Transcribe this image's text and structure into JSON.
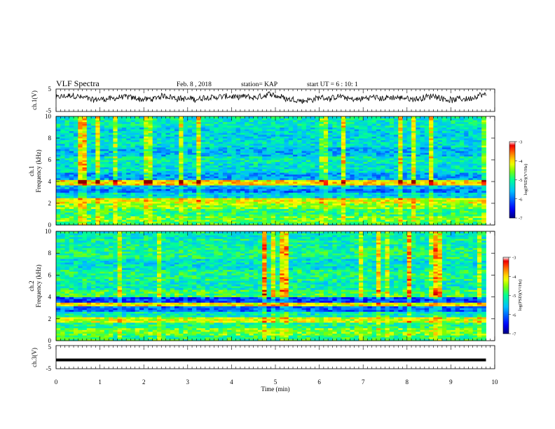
{
  "header": {
    "title": "VLF Spectra",
    "date": "Feb. 8 , 2018",
    "station": "station= KAP",
    "start": "start UT =  6 : 10: 1"
  },
  "chart_data": [
    {
      "type": "line",
      "name": "ch1-waveform",
      "ylabel": "ch.1(V)",
      "ylim": [
        -5,
        5
      ],
      "xlim": [
        0,
        10
      ],
      "yticks": [
        "5",
        "-5"
      ],
      "trace_x_range": [
        0,
        9.8
      ],
      "trace_baseline": 1.0,
      "trace_amplitude": 1.6,
      "trace_color": "#000000"
    },
    {
      "type": "heatmap",
      "name": "ch1-spectrogram",
      "ylabel": "Frequency (kHz)",
      "channel": "ch.1",
      "ylim": [
        0,
        10
      ],
      "xlim": [
        0,
        10
      ],
      "yticks": [
        "0",
        "2",
        "4",
        "6",
        "8",
        "10"
      ],
      "data_x_range": [
        0,
        9.8
      ],
      "colorbar": {
        "label": "log(PSD)(V²/Hz)",
        "min": -7,
        "max": -3,
        "ticks": [
          "-3",
          "-4",
          "-5",
          "-6",
          "-7"
        ],
        "scale": [
          "#000080",
          "#0000ff",
          "#00bfff",
          "#00ffa0",
          "#80ff00",
          "#ffff00",
          "#ff8000",
          "#ff0000",
          "#800000",
          "#ffffff"
        ]
      },
      "bands": [
        {
          "f": 0.2,
          "log_psd": -4.8
        },
        {
          "f": 0.6,
          "log_psd": -4.6
        },
        {
          "f": 1.2,
          "log_psd": -4.9
        },
        {
          "f": 1.9,
          "log_psd": -4.5
        },
        {
          "f": 2.2,
          "log_psd": -4.2
        },
        {
          "f": 2.8,
          "log_psd": -5.4
        },
        {
          "f": 3.1,
          "log_psd": -5.9
        },
        {
          "f": 3.5,
          "log_psd": -5.6
        },
        {
          "f": 3.8,
          "log_psd": -4.0
        },
        {
          "f": 4.5,
          "log_psd": -5.7
        },
        {
          "f": 5.2,
          "log_psd": -5.3
        },
        {
          "f": 6.0,
          "log_psd": -5.2
        },
        {
          "f": 6.8,
          "log_psd": -5.6
        },
        {
          "f": 7.5,
          "log_psd": -5.3
        },
        {
          "f": 8.5,
          "log_psd": -5.4
        },
        {
          "f": 9.5,
          "log_psd": -5.2
        }
      ]
    },
    {
      "type": "heatmap",
      "name": "ch2-spectrogram",
      "ylabel": "Frequency (kHz)",
      "channel": "ch.2",
      "ylim": [
        0,
        10
      ],
      "xlim": [
        0,
        10
      ],
      "yticks": [
        "0",
        "2",
        "4",
        "6",
        "8",
        "10"
      ],
      "data_x_range": [
        0,
        9.8
      ],
      "colorbar": {
        "label": "log(PSD)(V²/Hz)",
        "min": -7,
        "max": -3,
        "ticks": [
          "-3",
          "-4",
          "-5",
          "-6",
          "-7"
        ],
        "scale": [
          "#000080",
          "#0000ff",
          "#00bfff",
          "#00ffa0",
          "#80ff00",
          "#ffff00",
          "#ff8000",
          "#ff0000",
          "#800000",
          "#ffffff"
        ]
      },
      "bands": [
        {
          "f": 0.2,
          "log_psd": -4.9
        },
        {
          "f": 0.8,
          "log_psd": -4.6
        },
        {
          "f": 1.4,
          "log_psd": -5.0
        },
        {
          "f": 1.8,
          "log_psd": -4.3
        },
        {
          "f": 2.4,
          "log_psd": -5.2
        },
        {
          "f": 2.9,
          "log_psd": -6.0
        },
        {
          "f": 3.3,
          "log_psd": -4.1
        },
        {
          "f": 3.8,
          "log_psd": -6.2
        },
        {
          "f": 4.2,
          "log_psd": -4.8
        },
        {
          "f": 5.0,
          "log_psd": -5.2
        },
        {
          "f": 6.0,
          "log_psd": -5.0
        },
        {
          "f": 7.0,
          "log_psd": -5.3
        },
        {
          "f": 8.0,
          "log_psd": -5.0
        },
        {
          "f": 9.0,
          "log_psd": -5.1
        },
        {
          "f": 9.8,
          "log_psd": -5.2
        }
      ]
    },
    {
      "type": "line",
      "name": "ch3-waveform",
      "ylabel": "ch.3(V)",
      "ylim": [
        -5,
        5
      ],
      "xlim": [
        0,
        10
      ],
      "yticks": [
        "5",
        "-5"
      ],
      "trace_x_range": [
        0,
        9.8
      ],
      "trace_level": -1.2,
      "trace_color": "#000000",
      "xlabel": "Time (min)",
      "xticks": [
        "0",
        "1",
        "2",
        "3",
        "4",
        "5",
        "6",
        "7",
        "8",
        "9",
        "10"
      ]
    }
  ]
}
